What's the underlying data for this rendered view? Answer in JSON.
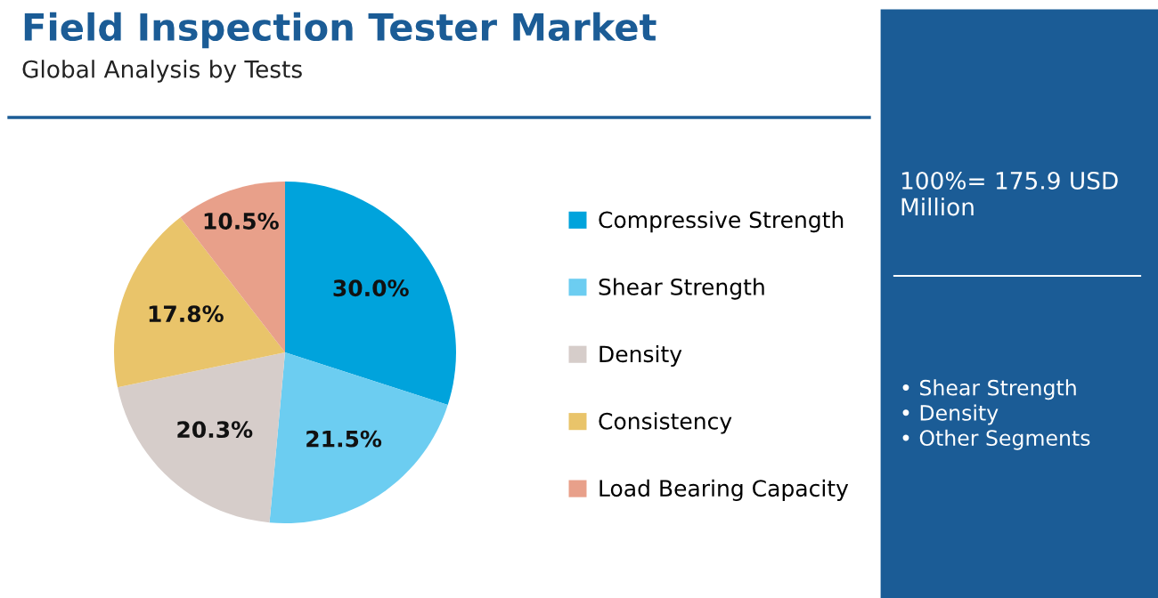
{
  "chart_data": {
    "type": "pie",
    "title": "Field Inspection Tester Market",
    "subtitle": "Global Analysis by Tests",
    "categories": [
      "Compressive Strength",
      "Shear Strength",
      "Density",
      "Consistency",
      "Load Bearing Capacity"
    ],
    "values": [
      30.0,
      21.5,
      20.3,
      17.8,
      10.5
    ],
    "colors": [
      "#00a3dc",
      "#6ccdf1",
      "#d6cdca",
      "#e9c46a",
      "#e8a08a"
    ],
    "value_labels": [
      "30.0%",
      "21.5%",
      "20.3%",
      "17.8%",
      "10.5%"
    ],
    "legend": "right",
    "annotations": [
      "100%= 175.9 USD Million",
      "• Shear Strength\n• Density\n• Other Segments"
    ]
  }
}
